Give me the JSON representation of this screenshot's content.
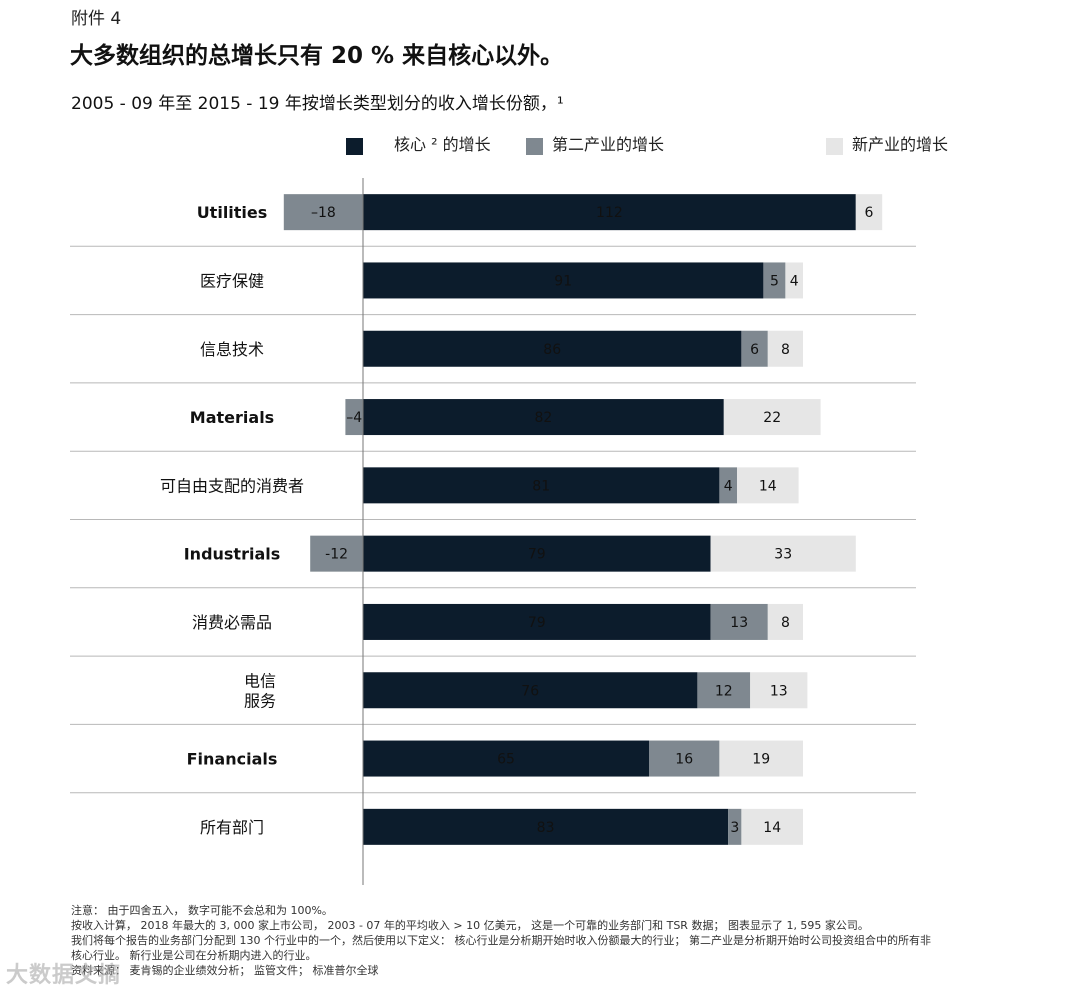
{
  "header": {
    "exhibit": "附件 4",
    "title": "大多数组织的总增长只有 20 % 来自核心以外。",
    "subtitle": "2005 - 09 年至 2015 - 19 年按增长类型划分的收入增长份额，¹"
  },
  "colors": {
    "core": "#0c1c2c",
    "adjacent": "#7f8890",
    "new": "#e6e6e6",
    "separator": "#b8b8b8",
    "axis": "#777777"
  },
  "chart_data": {
    "type": "bar",
    "orientation": "horizontal",
    "stacked": true,
    "legend_position": "top",
    "series": [
      {
        "name": "核心 ² 的增长",
        "key": "core"
      },
      {
        "name": "第二产业的增长",
        "key": "adjacent"
      },
      {
        "name": "新产业的增长",
        "key": "new"
      }
    ],
    "categories": [
      {
        "label": "Utilities",
        "bold": true,
        "core": 112,
        "adjacent": -18,
        "new": 6,
        "labels": {
          "core": "112",
          "adjacent": "–18",
          "new": "6"
        }
      },
      {
        "label": "医疗保健",
        "bold": false,
        "core": 91,
        "adjacent": 5,
        "new": 4,
        "labels": {
          "core": "91",
          "adjacent": "5",
          "new": "4"
        }
      },
      {
        "label": "信息技术",
        "bold": false,
        "core": 86,
        "adjacent": 6,
        "new": 8,
        "labels": {
          "core": "86",
          "adjacent": "6",
          "new": "8"
        }
      },
      {
        "label": "Materials",
        "bold": true,
        "core": 82,
        "adjacent": -4,
        "new": 22,
        "labels": {
          "core": "82",
          "adjacent": "–4",
          "new": "22"
        }
      },
      {
        "label": "可自由支配的消费者",
        "bold": false,
        "core": 81,
        "adjacent": 4,
        "new": 14,
        "labels": {
          "core": "81",
          "adjacent": "4",
          "new": "14"
        }
      },
      {
        "label": "Industrials",
        "bold": true,
        "core": 79,
        "adjacent": -12,
        "new": 33,
        "labels": {
          "core": "79",
          "adjacent": "-12",
          "new": "33"
        }
      },
      {
        "label": "消费必需品",
        "bold": false,
        "core": 79,
        "adjacent": 13,
        "new": 8,
        "labels": {
          "core": "79",
          "adjacent": "13",
          "new": "8"
        }
      },
      {
        "label": "电信\n服务",
        "bold": false,
        "core": 76,
        "adjacent": 12,
        "new": 13,
        "labels": {
          "core": "76",
          "adjacent": "12",
          "new": "13"
        }
      },
      {
        "label": "Financials",
        "bold": true,
        "core": 65,
        "adjacent": 16,
        "new": 19,
        "labels": {
          "core": "65",
          "adjacent": "16",
          "new": "19"
        }
      },
      {
        "label": "所有部门",
        "bold": false,
        "core": 83,
        "adjacent": 3,
        "new": 14,
        "labels": {
          "core": "83",
          "adjacent": "3",
          "new": "14"
        }
      }
    ]
  },
  "footnotes": [
    "注意： 由于四舍五入， 数字可能不会总和为 100%。",
    "按收入计算， 2018 年最大的 3, 000 家上市公司， 2003 - 07 年的平均收入 > 10 亿美元， 这是一个可靠的业务部门和 TSR 数据； 图表显示了 1, 595 家公司。",
    "我们将每个报告的业务部门分配到 130 个行业中的一个，然后使用以下定义： 核心行业是分析期开始时收入份额最大的行业； 第二产业是分析期开始时公司投资组合中的所有非",
    "核心行业。 新行业是公司在分析期内进入的行业。",
    "资料来源： 麦肯锡的企业绩效分析； 监管文件； 标准普尔全球"
  ],
  "watermark": {
    "text": "大数据文摘"
  }
}
